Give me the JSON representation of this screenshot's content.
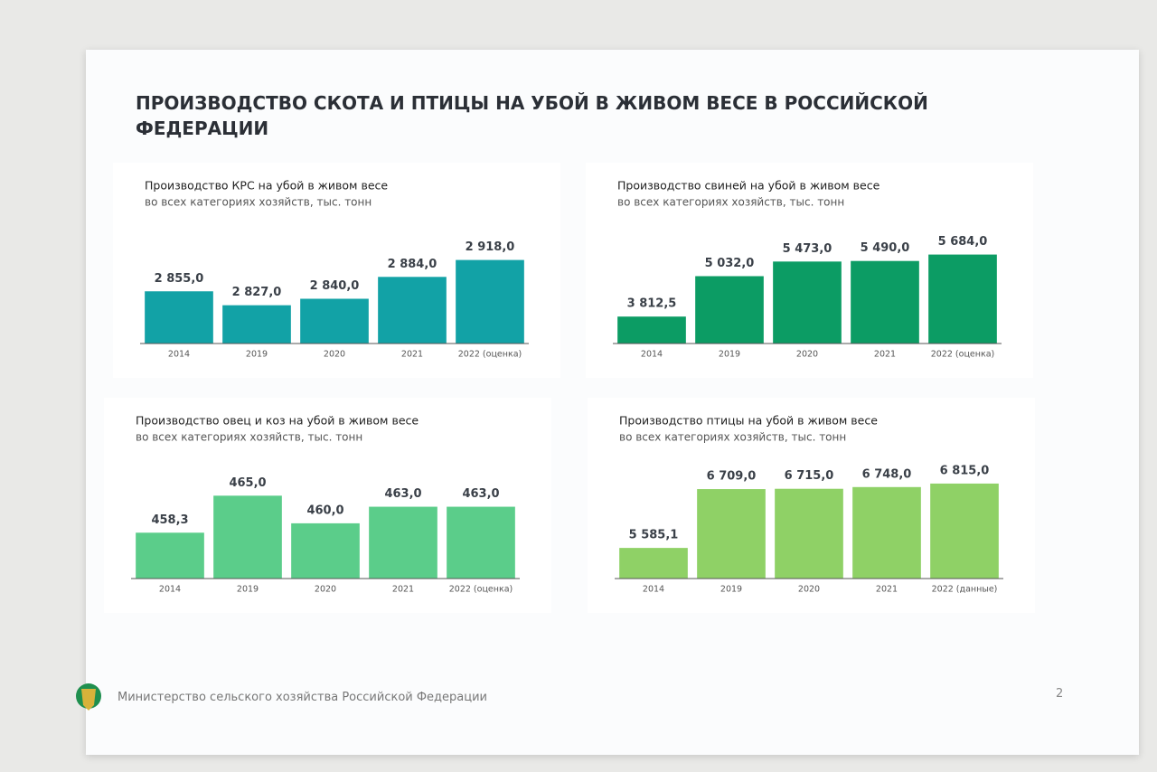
{
  "page": {
    "title": "ПРОИЗВОДСТВО СКОТА И ПТИЦЫ НА УБОЙ В ЖИВОМ ВЕСЕ В РОССИЙСКОЙ ФЕДЕРАЦИИ",
    "footer": "Министерство сельского хозяйства Российской Федерации",
    "page_number": 2
  },
  "chart_data": [
    {
      "type": "bar",
      "title": "Производство КРС на убой в живом весе",
      "subtitle": "во всех категориях хозяйств, тыс. тонн",
      "categories": [
        "2014",
        "2019",
        "2020",
        "2021",
        "2022 (оценка)"
      ],
      "values": [
        2855.0,
        2827.0,
        2840.0,
        2884.0,
        2918.0
      ],
      "value_labels": [
        "2 855,0",
        "2 827,0",
        "2 840,0",
        "2 884,0",
        "2 918,0"
      ],
      "color": "#12a2a6",
      "ylim": [
        2750,
        2950
      ]
    },
    {
      "type": "bar",
      "title": "Производство свиней на убой в живом весе",
      "subtitle": "во всех категориях хозяйств, тыс. тонн",
      "categories": [
        "2014",
        "2019",
        "2020",
        "2021",
        "2022 (оценка)"
      ],
      "values": [
        3812.5,
        5032.0,
        5473.0,
        5490.0,
        5684.0
      ],
      "value_labels": [
        "3 812,5",
        "5 032,0",
        "5 473,0",
        "5 490,0",
        "5 684,0"
      ],
      "color": "#0c9c64",
      "ylim": [
        3000,
        6000
      ]
    },
    {
      "type": "bar",
      "title": "Производство овец и коз на убой в живом весе",
      "subtitle": "во всех категориях хозяйств, тыс. тонн",
      "categories": [
        "2014",
        "2019",
        "2020",
        "2021",
        "2022 (оценка)"
      ],
      "values": [
        458.3,
        465.0,
        460.0,
        463.0,
        463.0
      ],
      "value_labels": [
        "458,3",
        "465,0",
        "460,0",
        "463,0",
        "463,0"
      ],
      "color": "#5bcd8a",
      "ylim": [
        450,
        468
      ]
    },
    {
      "type": "bar",
      "title": "Производство птицы на убой в живом весе",
      "subtitle": "во всех категориях хозяйств, тыс. тонн",
      "categories": [
        "2014",
        "2019",
        "2020",
        "2021",
        "2022 (данные)"
      ],
      "values": [
        5585.1,
        6709.0,
        6715.0,
        6748.0,
        6815.0
      ],
      "value_labels": [
        "5 585,1",
        "6 709,0",
        "6 715,0",
        "6 748,0",
        "6 815,0"
      ],
      "color": "#8fd166",
      "ylim": [
        5000,
        6900
      ]
    }
  ]
}
